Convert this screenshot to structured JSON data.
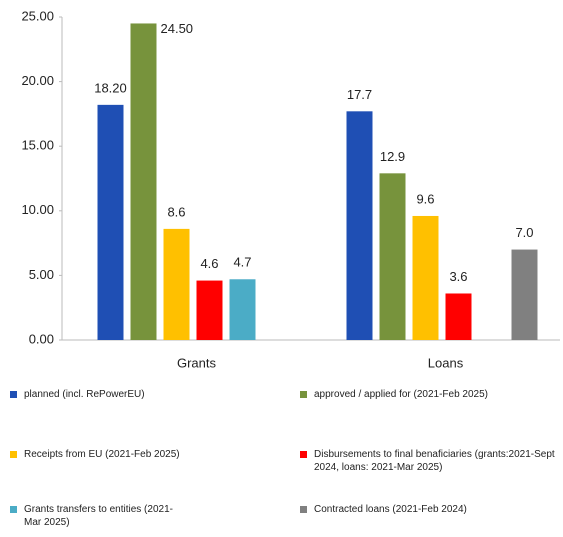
{
  "chart_data": {
    "type": "bar",
    "categories": [
      "Grants",
      "Loans"
    ],
    "series": [
      {
        "name": "planned (incl. RePowerEU)",
        "color": "#1f4fb4",
        "values": [
          18.2,
          17.7
        ],
        "value_labels": [
          "18.20",
          "17.7"
        ]
      },
      {
        "name": "approved / applied for (2021-Feb 2025)",
        "color": "#77933c",
        "values": [
          24.5,
          12.9
        ],
        "value_labels": [
          "24.50",
          "12.9"
        ]
      },
      {
        "name": "Receipts from EU (2021-Feb 2025)",
        "color": "#ffc000",
        "values": [
          8.6,
          9.6
        ]
      },
      {
        "name": "Disbursements to final benaficiaries (grants:2021-Sept 2024, loans: 2021-Mar 2025)",
        "color": "#ff0000",
        "values": [
          4.6,
          3.6
        ]
      },
      {
        "name": "Grants transfers to entities (2021-Mar 2025)",
        "color": "#4bacc6",
        "values": [
          4.7,
          null
        ]
      },
      {
        "name": "Contracted loans (2021-Feb 2024)",
        "color": "#808080",
        "values": [
          null,
          7.0
        ],
        "value_labels": [
          null,
          "7.0"
        ]
      }
    ],
    "ylim": [
      0,
      25
    ],
    "yticks": [
      {
        "value": 0,
        "label": "0.00"
      },
      {
        "value": 5,
        "label": "5.00"
      },
      {
        "value": 10,
        "label": "10.00"
      },
      {
        "value": 15,
        "label": "15.00"
      },
      {
        "value": 20,
        "label": "20.00"
      },
      {
        "value": 25,
        "label": "25.00"
      }
    ],
    "grid": false
  }
}
